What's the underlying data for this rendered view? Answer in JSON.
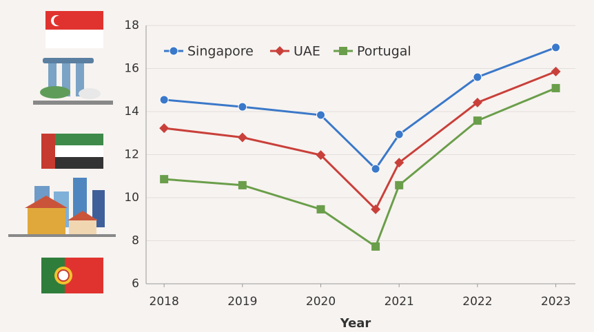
{
  "chart_data": {
    "type": "line",
    "x_label": "Year",
    "x": [
      2018,
      2019,
      2020,
      2020.7,
      2021,
      2022,
      2023
    ],
    "xlim": [
      2017.77,
      2023.25
    ],
    "xticks": [
      2018,
      2019,
      2020,
      2021,
      2022,
      2023
    ],
    "ylim": [
      6,
      18
    ],
    "yticks": [
      6,
      8,
      10,
      12,
      14,
      16,
      18
    ],
    "grid": true,
    "series": [
      {
        "name": "Singapore",
        "color": "#3a78c9",
        "marker": "circle",
        "values": [
          14.55,
          14.22,
          13.84,
          11.34,
          12.94,
          15.6,
          16.98
        ]
      },
      {
        "name": "UAE",
        "color": "#c9403a",
        "marker": "diamond",
        "values": [
          13.23,
          12.8,
          11.98,
          9.46,
          11.63,
          14.42,
          15.86
        ]
      },
      {
        "name": "Portugal",
        "color": "#6a9e4a",
        "marker": "square",
        "values": [
          10.86,
          10.58,
          9.46,
          7.73,
          10.58,
          13.58,
          15.09
        ]
      }
    ]
  }
}
